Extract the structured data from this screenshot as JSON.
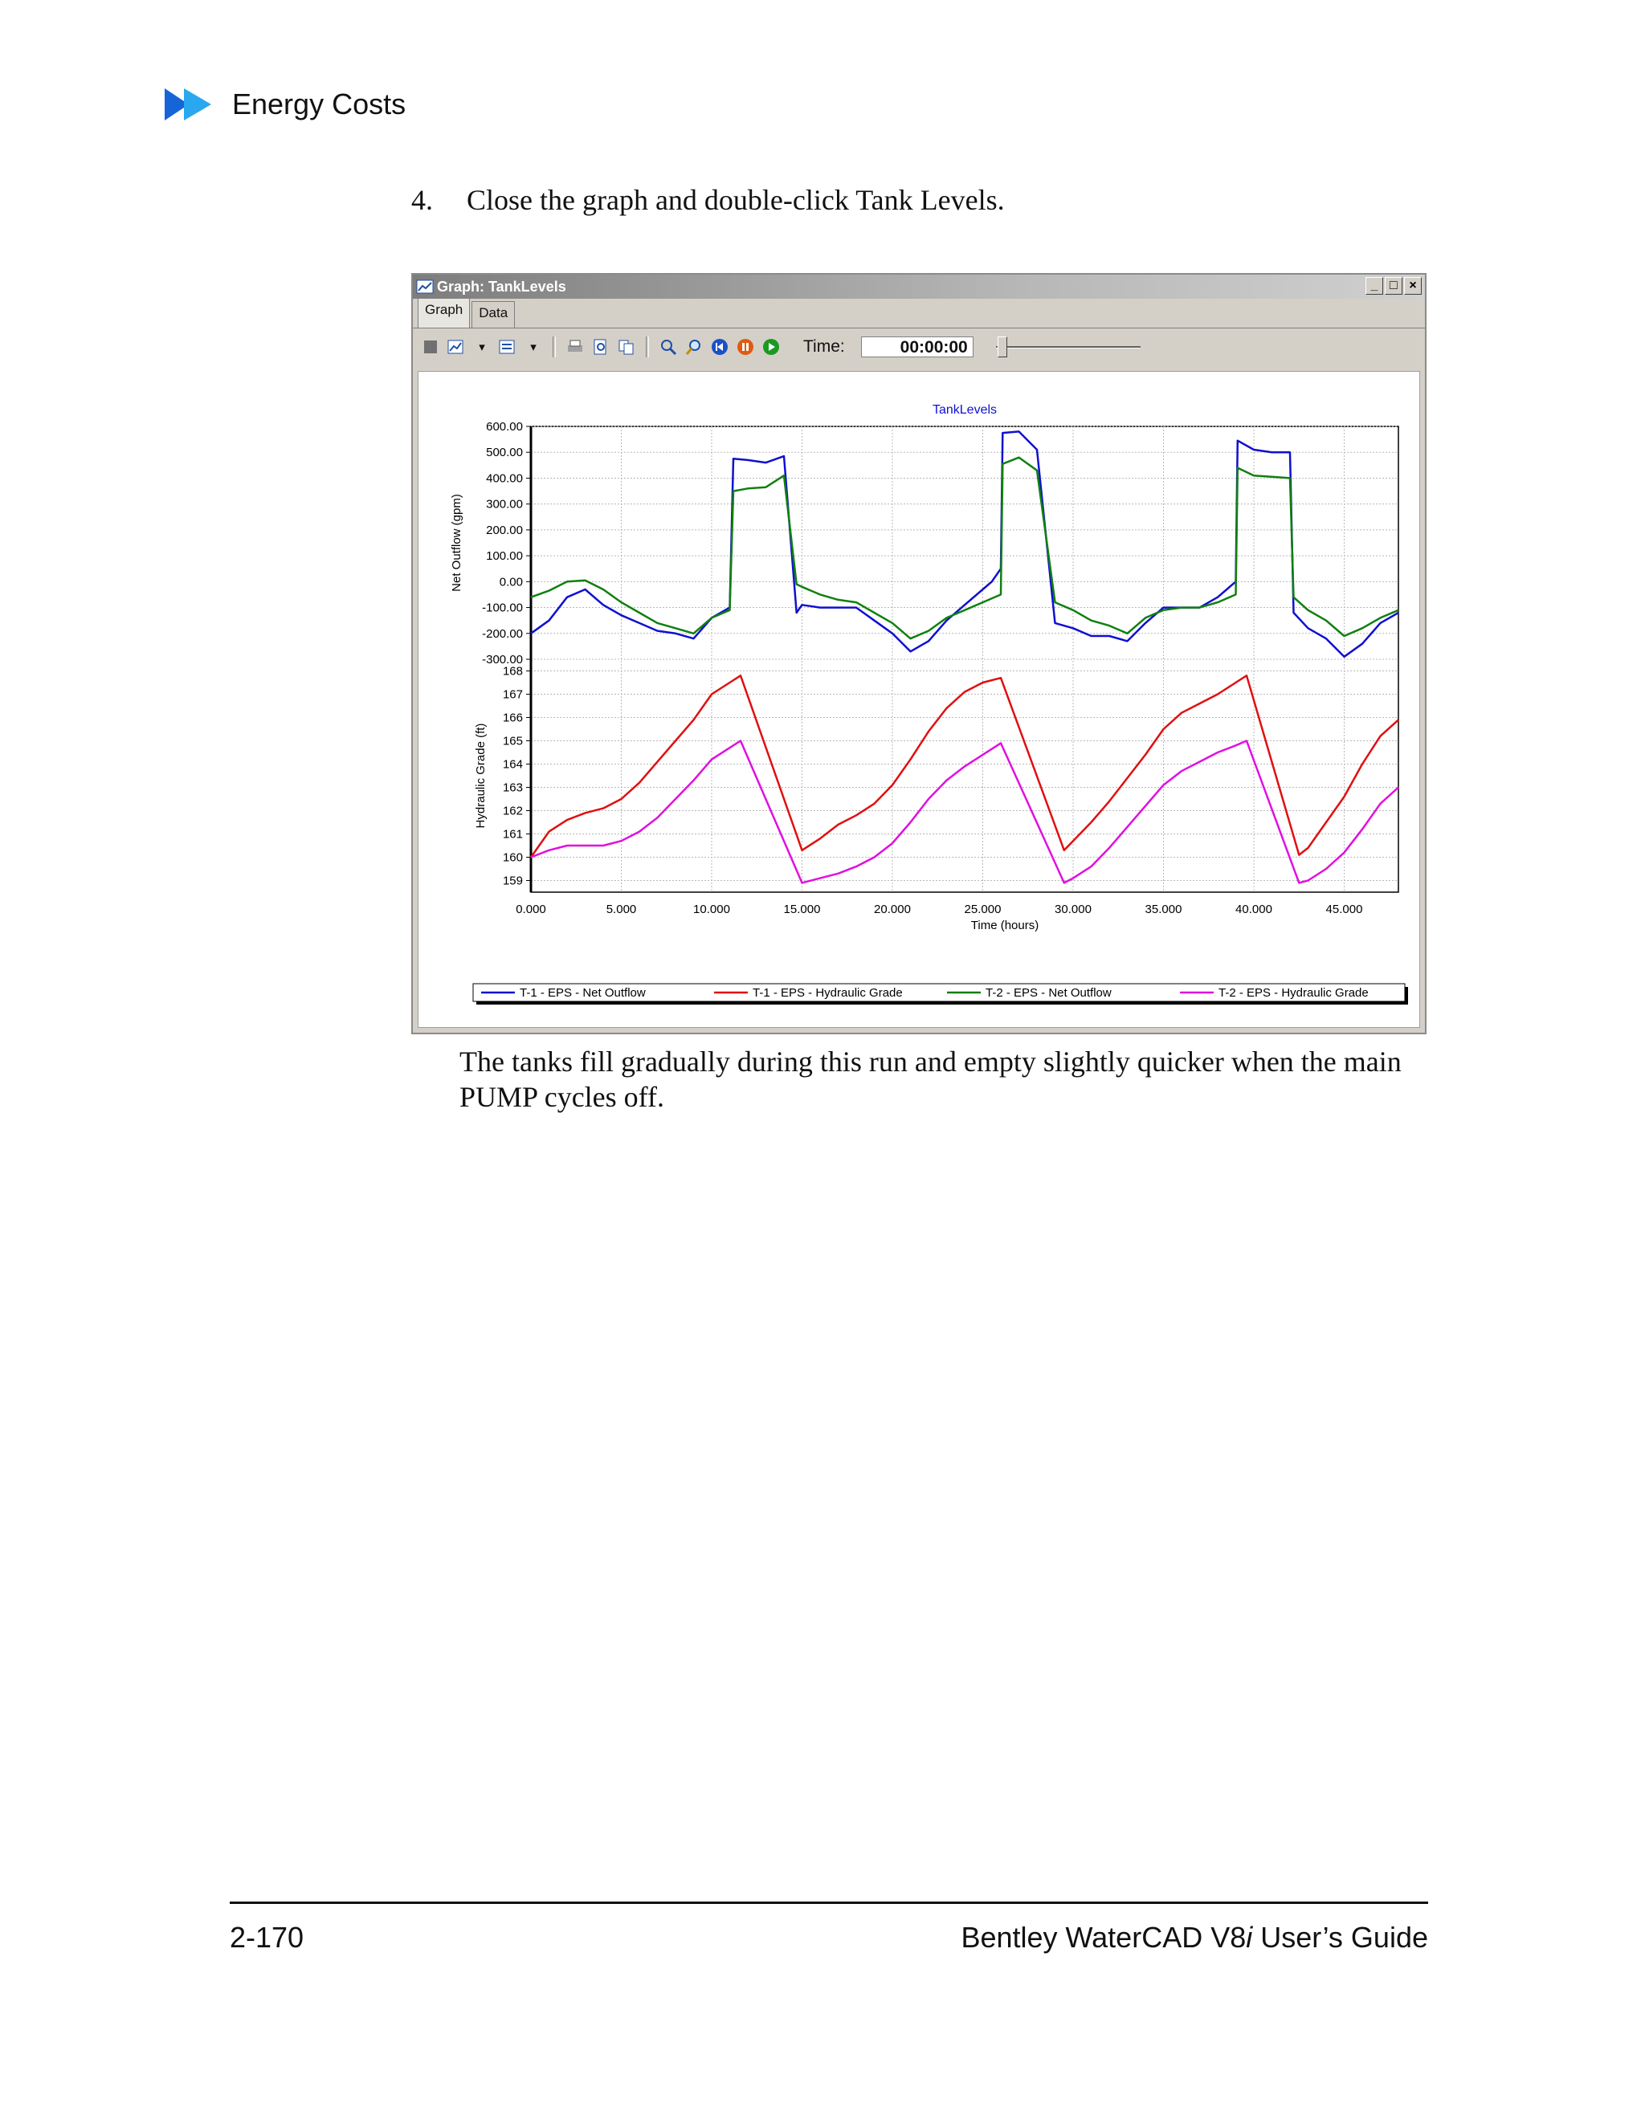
{
  "header": {
    "title": "Energy Costs"
  },
  "step": {
    "number": "4.",
    "text": "Close the graph and double-click Tank Levels."
  },
  "window": {
    "title": "Graph: TankLevels",
    "controls": [
      "_",
      "□",
      "×"
    ],
    "tabs": [
      "Graph",
      "Data"
    ],
    "time_label": "Time:",
    "time_value": "00:00:00"
  },
  "caption": "The tanks fill gradually during this run and empty slightly quicker when the main PUMP cycles off.",
  "footer": {
    "page": "2-170",
    "title_pre": "Bentley WaterCAD V8",
    "title_i": "i",
    "title_post": " User’s Guide"
  },
  "chart_data": {
    "type": "line",
    "title": "TankLevels",
    "xlabel": "Time (hours)",
    "xlim": [
      0,
      48
    ],
    "x_ticks": [
      "0.000",
      "5.000",
      "10.000",
      "15.000",
      "20.000",
      "25.000",
      "30.000",
      "35.000",
      "40.000",
      "45.000"
    ],
    "grid": true,
    "legend_position": "bottom",
    "panels": [
      {
        "ylabel": "Net Outflow (gpm)",
        "ylim": [
          -300,
          600
        ],
        "y_ticks": [
          "600.00",
          "500.00",
          "400.00",
          "300.00",
          "200.00",
          "100.00",
          "0.00",
          "-100.00",
          "-200.00",
          "-300.00"
        ],
        "series": [
          "T-1 - EPS - Net Outflow",
          "T-2 - EPS - Net Outflow"
        ]
      },
      {
        "ylabel": "Hydraulic Grade (ft)",
        "ylim": [
          158.5,
          168.5
        ],
        "y_ticks": [
          "168",
          "167",
          "166",
          "165",
          "164",
          "163",
          "162",
          "161",
          "160",
          "159"
        ],
        "series": [
          "T-1 - EPS - Hydraulic Grade",
          "T-2 - EPS - Hydraulic Grade"
        ]
      }
    ],
    "series": [
      {
        "name": "T-1 - EPS - Net Outflow",
        "color": "#1010d0",
        "points": [
          [
            0,
            -200
          ],
          [
            1,
            -150
          ],
          [
            2,
            -60
          ],
          [
            3,
            -30
          ],
          [
            4,
            -90
          ],
          [
            5,
            -130
          ],
          [
            6,
            -160
          ],
          [
            7,
            -190
          ],
          [
            8,
            -200
          ],
          [
            9,
            -220
          ],
          [
            10,
            -140
          ],
          [
            11,
            -100
          ],
          [
            11.2,
            475
          ],
          [
            12,
            470
          ],
          [
            13,
            460
          ],
          [
            14,
            485
          ],
          [
            14.7,
            -120
          ],
          [
            15,
            -90
          ],
          [
            16,
            -100
          ],
          [
            17,
            -100
          ],
          [
            18,
            -100
          ],
          [
            19,
            -150
          ],
          [
            20,
            -200
          ],
          [
            21,
            -270
          ],
          [
            22,
            -230
          ],
          [
            23,
            -150
          ],
          [
            24,
            -90
          ],
          [
            25,
            -30
          ],
          [
            25.5,
            0
          ],
          [
            26,
            50
          ],
          [
            26.1,
            575
          ],
          [
            27,
            580
          ],
          [
            28,
            510
          ],
          [
            29,
            -160
          ],
          [
            30,
            -180
          ],
          [
            31,
            -210
          ],
          [
            32,
            -210
          ],
          [
            33,
            -230
          ],
          [
            34,
            -160
          ],
          [
            35,
            -100
          ],
          [
            36,
            -100
          ],
          [
            37,
            -100
          ],
          [
            38,
            -60
          ],
          [
            39,
            0
          ],
          [
            39.1,
            545
          ],
          [
            40,
            510
          ],
          [
            41,
            500
          ],
          [
            42,
            500
          ],
          [
            42.2,
            -120
          ],
          [
            43,
            -180
          ],
          [
            44,
            -220
          ],
          [
            45,
            -290
          ],
          [
            46,
            -240
          ],
          [
            47,
            -160
          ],
          [
            48,
            -120
          ]
        ]
      },
      {
        "name": "T-1 - EPS - Hydraulic Grade",
        "color": "#e01010",
        "points": [
          [
            0,
            160
          ],
          [
            1,
            161.1
          ],
          [
            2,
            161.6
          ],
          [
            3,
            161.9
          ],
          [
            4,
            162.1
          ],
          [
            5,
            162.5
          ],
          [
            6,
            163.2
          ],
          [
            7,
            164.1
          ],
          [
            8,
            165
          ],
          [
            9,
            165.9
          ],
          [
            10,
            167
          ],
          [
            11,
            167.5
          ],
          [
            11.6,
            167.8
          ],
          [
            15,
            160.3
          ],
          [
            16,
            160.8
          ],
          [
            17,
            161.4
          ],
          [
            18,
            161.8
          ],
          [
            19,
            162.3
          ],
          [
            20,
            163.1
          ],
          [
            21,
            164.2
          ],
          [
            22,
            165.4
          ],
          [
            23,
            166.4
          ],
          [
            24,
            167.1
          ],
          [
            25,
            167.5
          ],
          [
            26,
            167.7
          ],
          [
            29.5,
            160.3
          ],
          [
            30,
            160.7
          ],
          [
            31,
            161.5
          ],
          [
            32,
            162.4
          ],
          [
            33,
            163.4
          ],
          [
            34,
            164.4
          ],
          [
            35,
            165.5
          ],
          [
            36,
            166.2
          ],
          [
            37,
            166.6
          ],
          [
            38,
            167
          ],
          [
            39,
            167.5
          ],
          [
            39.6,
            167.8
          ],
          [
            42.5,
            160.1
          ],
          [
            43,
            160.4
          ],
          [
            44,
            161.5
          ],
          [
            45,
            162.6
          ],
          [
            46,
            164
          ],
          [
            47,
            165.2
          ],
          [
            48,
            165.9
          ]
        ]
      },
      {
        "name": "T-2 - EPS - Net Outflow",
        "color": "#108010",
        "points": [
          [
            0,
            -60
          ],
          [
            1,
            -35
          ],
          [
            2,
            0
          ],
          [
            3,
            5
          ],
          [
            4,
            -30
          ],
          [
            5,
            -80
          ],
          [
            6,
            -120
          ],
          [
            7,
            -160
          ],
          [
            8,
            -180
          ],
          [
            9,
            -200
          ],
          [
            10,
            -140
          ],
          [
            11,
            -110
          ],
          [
            11.2,
            350
          ],
          [
            12,
            360
          ],
          [
            13,
            365
          ],
          [
            14,
            410
          ],
          [
            14.7,
            -10
          ],
          [
            15,
            -20
          ],
          [
            16,
            -50
          ],
          [
            17,
            -70
          ],
          [
            18,
            -80
          ],
          [
            19,
            -120
          ],
          [
            20,
            -160
          ],
          [
            21,
            -220
          ],
          [
            22,
            -190
          ],
          [
            23,
            -140
          ],
          [
            24,
            -110
          ],
          [
            25,
            -80
          ],
          [
            26,
            -50
          ],
          [
            26.1,
            455
          ],
          [
            27,
            480
          ],
          [
            28,
            430
          ],
          [
            29,
            -80
          ],
          [
            30,
            -110
          ],
          [
            31,
            -150
          ],
          [
            32,
            -170
          ],
          [
            33,
            -200
          ],
          [
            34,
            -140
          ],
          [
            35,
            -110
          ],
          [
            36,
            -100
          ],
          [
            37,
            -100
          ],
          [
            38,
            -80
          ],
          [
            39,
            -50
          ],
          [
            39.1,
            440
          ],
          [
            40,
            410
          ],
          [
            41,
            405
          ],
          [
            42,
            400
          ],
          [
            42.2,
            -60
          ],
          [
            43,
            -110
          ],
          [
            44,
            -150
          ],
          [
            45,
            -210
          ],
          [
            46,
            -180
          ],
          [
            47,
            -140
          ],
          [
            48,
            -110
          ]
        ]
      },
      {
        "name": "T-2 - EPS - Hydraulic Grade",
        "color": "#e010e0",
        "points": [
          [
            0,
            160
          ],
          [
            1,
            160.3
          ],
          [
            2,
            160.5
          ],
          [
            3,
            160.5
          ],
          [
            4,
            160.5
          ],
          [
            5,
            160.7
          ],
          [
            6,
            161.1
          ],
          [
            7,
            161.7
          ],
          [
            8,
            162.5
          ],
          [
            9,
            163.3
          ],
          [
            10,
            164.2
          ],
          [
            11,
            164.7
          ],
          [
            11.6,
            165
          ],
          [
            15,
            158.9
          ],
          [
            16,
            159.1
          ],
          [
            17,
            159.3
          ],
          [
            18,
            159.6
          ],
          [
            19,
            160
          ],
          [
            20,
            160.6
          ],
          [
            21,
            161.5
          ],
          [
            22,
            162.5
          ],
          [
            23,
            163.3
          ],
          [
            24,
            163.9
          ],
          [
            25,
            164.4
          ],
          [
            26,
            164.9
          ],
          [
            29.5,
            158.9
          ],
          [
            30,
            159.1
          ],
          [
            31,
            159.6
          ],
          [
            32,
            160.4
          ],
          [
            33,
            161.3
          ],
          [
            34,
            162.2
          ],
          [
            35,
            163.1
          ],
          [
            36,
            163.7
          ],
          [
            37,
            164.1
          ],
          [
            38,
            164.5
          ],
          [
            39,
            164.8
          ],
          [
            39.6,
            165
          ],
          [
            42.5,
            158.9
          ],
          [
            43,
            159
          ],
          [
            44,
            159.5
          ],
          [
            45,
            160.2
          ],
          [
            46,
            161.2
          ],
          [
            47,
            162.3
          ],
          [
            48,
            163
          ]
        ]
      }
    ]
  }
}
